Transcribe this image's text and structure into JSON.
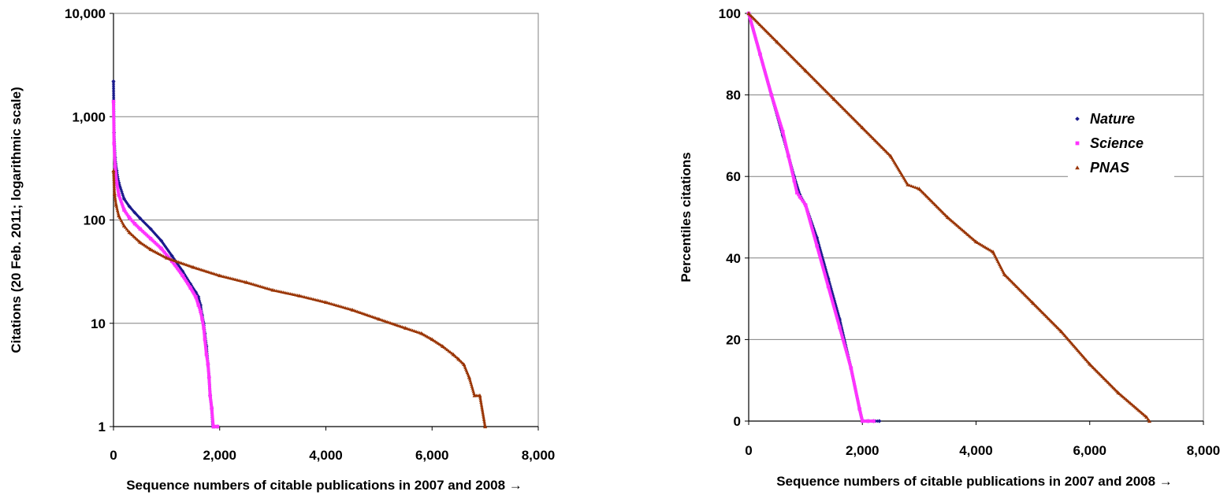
{
  "chart_data": [
    {
      "type": "scatter",
      "title": "",
      "xlabel": "Sequence numbers of citable publications in 2007 and 2008 →",
      "ylabel": "Citations (20 Feb. 2011; logarithmic scale)",
      "x_scale": "linear",
      "y_scale": "log",
      "xlim": [
        0,
        8000
      ],
      "ylim": [
        1,
        10000
      ],
      "x_ticks": [
        "0",
        "2,000",
        "4,000",
        "6,000",
        "8,000"
      ],
      "x_tick_values": [
        0,
        2000,
        4000,
        6000,
        8000
      ],
      "y_ticks": [
        "1",
        "10",
        "100",
        "1,000",
        "10,000"
      ],
      "y_tick_values": [
        1,
        10,
        100,
        1000,
        10000
      ],
      "grid": "horizontal",
      "legend": "none",
      "series": [
        {
          "name": "Nature",
          "color": "#1a1a8c",
          "marker": "diamond",
          "x": [
            0,
            10,
            30,
            60,
            100,
            200,
            300,
            400,
            500,
            700,
            900,
            1100,
            1300,
            1450,
            1550,
            1600,
            1640,
            1670,
            1700,
            1720,
            1750,
            1780,
            1800,
            1820,
            1850,
            1870,
            1900,
            1960
          ],
          "y": [
            2200,
            700,
            400,
            300,
            230,
            160,
            135,
            118,
            104,
            82,
            63,
            45,
            32,
            24,
            20,
            18,
            15,
            12,
            10,
            8,
            6,
            4,
            3,
            2,
            1.5,
            1,
            1,
            1
          ]
        },
        {
          "name": "Science",
          "color": "#ff33ff",
          "marker": "square",
          "x": [
            0,
            10,
            30,
            60,
            100,
            200,
            300,
            400,
            500,
            700,
            900,
            1100,
            1300,
            1450,
            1550,
            1600,
            1640,
            1670,
            1700,
            1720,
            1750,
            1780,
            1800,
            1820,
            1850,
            1880,
            1920,
            1960
          ],
          "y": [
            1400,
            550,
            330,
            230,
            175,
            125,
            105,
            92,
            82,
            66,
            53,
            40,
            29,
            22,
            18,
            15,
            13,
            11,
            9,
            7,
            5,
            4,
            3,
            2,
            1.5,
            1,
            1,
            1
          ]
        },
        {
          "name": "PNAS",
          "color": "#993300",
          "marker": "triangle",
          "x": [
            0,
            20,
            50,
            100,
            200,
            300,
            500,
            700,
            1000,
            1500,
            2000,
            2500,
            3000,
            3500,
            4000,
            4500,
            5000,
            5500,
            5800,
            6000,
            6200,
            6400,
            6500,
            6600,
            6700,
            6800,
            6900,
            7000
          ],
          "y": [
            300,
            180,
            140,
            110,
            88,
            76,
            61,
            52,
            43,
            35,
            29,
            25,
            21,
            18.5,
            16,
            13.5,
            11,
            9,
            8,
            7,
            6,
            5,
            4.5,
            4,
            3,
            2,
            2,
            1
          ]
        }
      ]
    },
    {
      "type": "scatter",
      "title": "",
      "xlabel": "Sequence numbers of citable publications in 2007 and 2008 →",
      "ylabel": "Percentiles citations",
      "x_scale": "linear",
      "y_scale": "linear",
      "xlim": [
        0,
        8000
      ],
      "ylim": [
        0,
        100
      ],
      "x_ticks": [
        "0",
        "2,000",
        "4,000",
        "6,000",
        "8,000"
      ],
      "x_tick_values": [
        0,
        2000,
        4000,
        6000,
        8000
      ],
      "y_ticks": [
        "0",
        "20",
        "40",
        "60",
        "80",
        "100"
      ],
      "y_tick_values": [
        0,
        20,
        40,
        60,
        80,
        100
      ],
      "grid": "horizontal",
      "legend": "right",
      "series": [
        {
          "name": "Nature",
          "color": "#1a1a8c",
          "marker": "diamond",
          "x": [
            0,
            200,
            400,
            600,
            700,
            800,
            900,
            1000,
            1200,
            1400,
            1600,
            1800,
            1950,
            2000,
            2100,
            2200,
            2300
          ],
          "y": [
            100,
            90,
            80,
            70,
            65,
            60,
            55.5,
            53,
            45,
            35,
            25,
            13,
            3,
            0,
            0,
            0,
            0
          ]
        },
        {
          "name": "Science",
          "color": "#ff33ff",
          "marker": "square",
          "x": [
            0,
            200,
            400,
            600,
            700,
            800,
            850,
            900,
            1000,
            1200,
            1400,
            1600,
            1800,
            1950,
            2000,
            2100,
            2200
          ],
          "y": [
            100,
            90,
            80,
            71,
            65,
            59,
            56,
            55,
            53,
            43,
            33,
            23,
            13,
            3,
            0,
            0,
            0
          ]
        },
        {
          "name": "PNAS",
          "color": "#993300",
          "marker": "triangle",
          "x": [
            0,
            500,
            1000,
            1500,
            2000,
            2500,
            2800,
            3000,
            3500,
            4000,
            4300,
            4500,
            5000,
            5500,
            6000,
            6500,
            7000,
            7050
          ],
          "y": [
            100,
            93,
            86,
            79,
            72,
            65,
            58,
            57,
            50,
            44,
            41.5,
            36,
            29,
            22,
            14,
            7,
            1,
            0
          ]
        }
      ]
    }
  ]
}
